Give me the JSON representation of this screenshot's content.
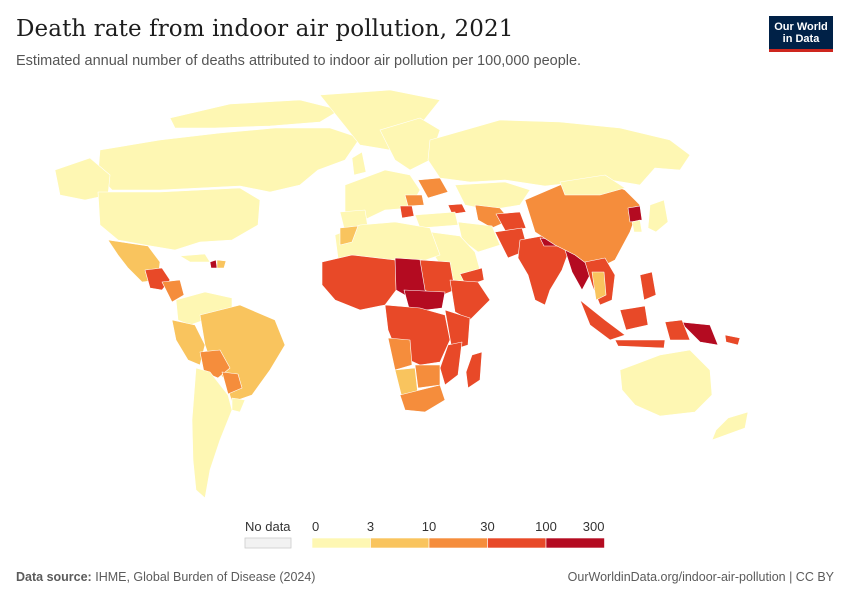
{
  "title": "Death rate from indoor air pollution, 2021",
  "subtitle": "Estimated annual number of deaths attributed to indoor air pollution per 100,000 people.",
  "logo": {
    "line1": "Our World",
    "line2": "in Data"
  },
  "legend": {
    "no_data_label": "No data",
    "bins": [
      {
        "from": "0",
        "to": "3",
        "color": "#fef7b3"
      },
      {
        "from": "3",
        "to": "10",
        "color": "#f9c45e"
      },
      {
        "from": "10",
        "to": "30",
        "color": "#f58d3c"
      },
      {
        "from": "30",
        "to": "100",
        "color": "#e84928"
      },
      {
        "from": "100",
        "to": "300",
        "color": "#b40b21"
      }
    ],
    "tick_labels": [
      "0",
      "3",
      "10",
      "30",
      "100",
      "300"
    ]
  },
  "footer": {
    "source_label": "Data source:",
    "source_text": "IHME, Global Burden of Disease (2024)",
    "url_text": "OurWorldinData.org/indoor-air-pollution | CC BY"
  }
}
